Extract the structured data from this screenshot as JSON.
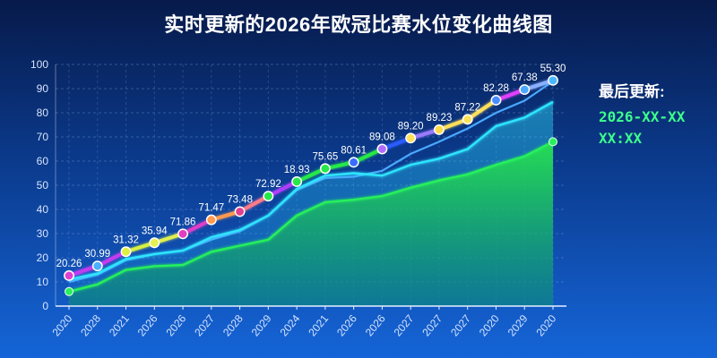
{
  "header": {
    "title": "实时更新的2026年欧冠比赛水位变化曲线图"
  },
  "update_panel": {
    "label": "最后更新:",
    "value": "2026-XX-XX XX:XX"
  },
  "chart_data": {
    "type": "line",
    "title": "实时更新的2026年欧冠比赛水位变化曲线图",
    "xlabel": "",
    "ylabel": "",
    "ylim": [
      0,
      100
    ],
    "y_ticks": [
      0,
      10,
      20,
      30,
      40,
      50,
      60,
      70,
      80,
      90,
      100
    ],
    "grid": true,
    "categories": [
      "2020",
      "2028",
      "2021",
      "2026",
      "2026",
      "2027",
      "2028",
      "2029",
      "2024",
      "2021",
      "2026",
      "2026",
      "2027",
      "2027",
      "2027",
      "2020",
      "2029",
      "2020"
    ],
    "series": [
      {
        "values": [
          12.6,
          16.6,
          22.5,
          26.2,
          29.9,
          35.7,
          39.1,
          45.5,
          51.5,
          56.9,
          59.5,
          65.0,
          69.5,
          73.0,
          77.3,
          85.2,
          89.6,
          93.4
        ],
        "labels": [
          "20.26",
          "30.99",
          "31.32",
          "35.94",
          "71.86",
          "71.47",
          "73.48",
          "72.92",
          "18.93",
          "75.65",
          "80.61",
          "89.08",
          "89.20",
          "89.23",
          "87.22",
          "82.28",
          "67.38",
          "55.30"
        ],
        "color": "#ffffff"
      },
      {
        "values": [
          10.0,
          13.0,
          19.0,
          21.5,
          23.0,
          27.5,
          31.0,
          37.5,
          48.0,
          53.0,
          53.5,
          56.0,
          63.0,
          68.0,
          73.5,
          80.0,
          85.0,
          93.0
        ],
        "color": "#4aa8ff"
      },
      {
        "values": [
          11.0,
          13.5,
          19.5,
          21.5,
          23.0,
          28.5,
          31.5,
          37.5,
          48.5,
          54.0,
          55.0,
          54.0,
          58.5,
          61.0,
          65.0,
          74.5,
          78.0,
          84.5
        ],
        "color": "#2fe5ff"
      },
      {
        "values": [
          6.0,
          9.0,
          15.0,
          16.5,
          17.0,
          22.5,
          25.0,
          27.5,
          37.5,
          43.0,
          44.0,
          45.5,
          49.0,
          52.0,
          54.5,
          58.5,
          62.0,
          68.0
        ],
        "color": "#27f05c"
      }
    ],
    "segment_colors": [
      "#c03cf0",
      "#c03cf0",
      "#d8f040",
      "#e0f050",
      "#e03cc8",
      "#ff9a50",
      "#ff7a8a",
      "#b03cff",
      "#27e84a",
      "#27e84a",
      "#27e84a",
      "#2a5cff",
      "#9a7aff",
      "#ffe05a",
      "#ffe05a",
      "#e040ff",
      "#8ab0ff",
      "#6ab8ff"
    ],
    "marker_colors": [
      "#e040d0",
      "#4ab0ff",
      "#e0f040",
      "#e8f050",
      "#e040c0",
      "#ff9a50",
      "#e04090",
      "#27e84a",
      "#27e84a",
      "#27e84a",
      "#3a6cff",
      "#b06cff",
      "#ffe05a",
      "#ffd84a",
      "#ffe05a",
      "#4a8cff",
      "#4aa8ff",
      "#4ab8ff"
    ]
  }
}
